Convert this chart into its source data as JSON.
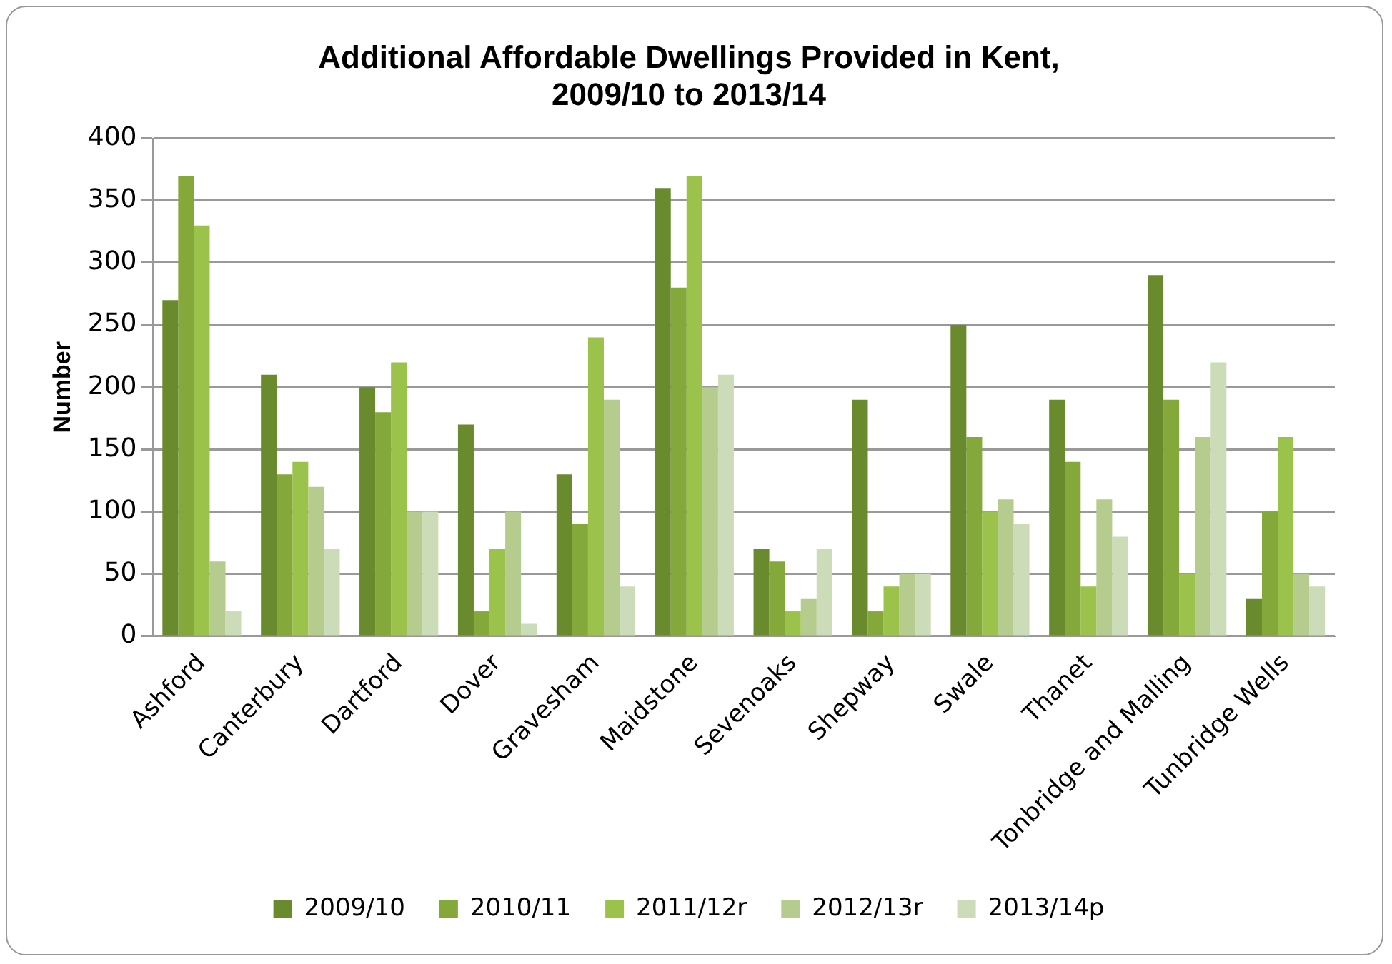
{
  "chart_data": {
    "type": "bar",
    "title": "Additional Affordable Dwellings Provided in Kent,\n2009/10 to 2013/14",
    "ylabel": "Number",
    "categories": [
      "Ashford",
      "Canterbury",
      "Dartford",
      "Dover",
      "Gravesham",
      "Maidstone",
      "Sevenoaks",
      "Shepway",
      "Swale",
      "Thanet",
      "Tonbridge and Malling",
      "Tunbridge Wells"
    ],
    "series": [
      {
        "name": "2009/10",
        "color": "#6a8a2e",
        "values": [
          270,
          210,
          200,
          170,
          130,
          360,
          70,
          190,
          250,
          190,
          290,
          30
        ]
      },
      {
        "name": "2010/11",
        "color": "#84a83a",
        "values": [
          370,
          130,
          180,
          20,
          90,
          280,
          60,
          20,
          160,
          140,
          190,
          100
        ]
      },
      {
        "name": "2011/12r",
        "color": "#9bc24a",
        "values": [
          330,
          140,
          220,
          70,
          240,
          370,
          20,
          40,
          100,
          40,
          50,
          160
        ]
      },
      {
        "name": "2012/13r",
        "color": "#b5cc8e",
        "values": [
          60,
          120,
          100,
          100,
          190,
          200,
          30,
          50,
          110,
          110,
          160,
          50
        ]
      },
      {
        "name": "2013/14p",
        "color": "#cddcb8",
        "values": [
          20,
          70,
          100,
          10,
          40,
          210,
          70,
          50,
          90,
          80,
          220,
          40
        ]
      }
    ],
    "ylim": [
      0,
      400
    ],
    "yticks": [
      0,
      50,
      100,
      150,
      200,
      250,
      300,
      350,
      400
    ],
    "grid": "y",
    "legend": "bottom"
  }
}
